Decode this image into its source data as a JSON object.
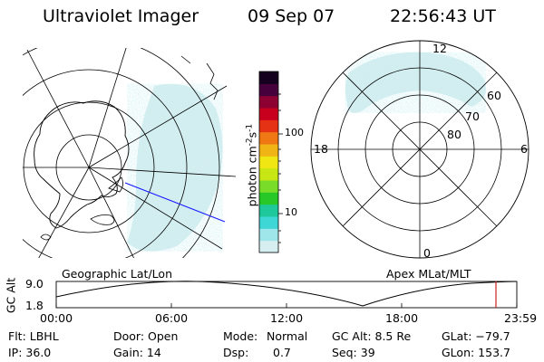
{
  "header": {
    "instrument": "Ultraviolet Imager",
    "date": "09 Sep 07",
    "time": "22:56:43 UT"
  },
  "colorbar": {
    "unit": "photon cm^-2 s^-1",
    "unit_main": "photon cm",
    "unit_exp1": "-2",
    "unit_mid": "s",
    "unit_exp2": "-1",
    "ticks": [
      "100",
      "10"
    ],
    "colors": [
      "#d6eef0",
      "#9fe6ea",
      "#3fd6d6",
      "#1fc89a",
      "#28c828",
      "#78dc28",
      "#c8e614",
      "#f0e614",
      "#f0b414",
      "#f07814",
      "#e63214",
      "#c8001e",
      "#8c0032",
      "#46003c",
      "#14001e"
    ]
  },
  "left_map": {
    "label": "Geographic Lat/Lon"
  },
  "right_map": {
    "label": "Apex  MLat/MLT",
    "mlt_labels": {
      "top": "12",
      "left": "18",
      "right": "6",
      "bottom": "0"
    },
    "mlat_labels": [
      "60",
      "70",
      "80"
    ]
  },
  "altitude_plot": {
    "ylabel": "GC Alt",
    "yticks": [
      "9.0",
      "1.8"
    ],
    "xticks": [
      "00:00",
      "06:00",
      "12:00",
      "18:00",
      "23:59"
    ],
    "marker_time": "22:56",
    "accent": "#cc2222"
  },
  "info": {
    "filter": "Flt: LBHL",
    "ip": "IP: 36.0",
    "door": "Door: Open",
    "gain": "Gain: 14",
    "mode_label": "Mode:",
    "mode_value": "Normal",
    "dsp_label": "Dsp:",
    "dsp_value": "0.7",
    "gc_alt": "GC Alt: 8.5 Re",
    "seq": "Seq: 39",
    "glat": "GLat: −79.7",
    "glon": "GLon: 153.7"
  }
}
